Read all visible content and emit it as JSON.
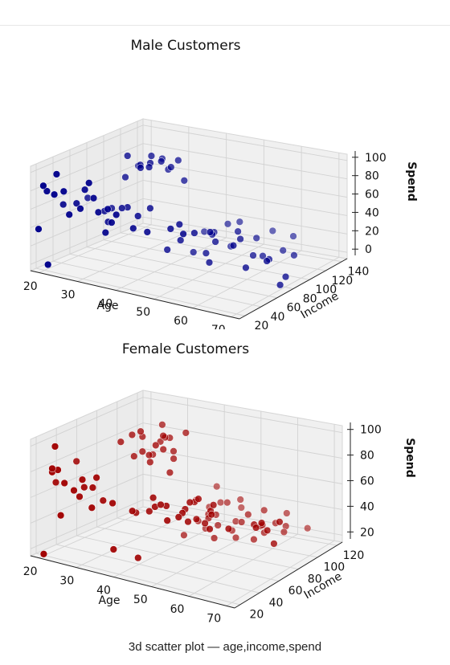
{
  "caption": "3d scatter plot — age,income,spend",
  "chart_data": [
    {
      "type": "scatter",
      "title": "Male  Customers",
      "color": "#00008b",
      "xlabel": "Age",
      "ylabel": "Income",
      "zlabel": "Spend",
      "x_ticks": [
        "20",
        "30",
        "40",
        "50",
        "60",
        "70"
      ],
      "y_ticks": [
        "20",
        "40",
        "60",
        "80",
        "100",
        "120",
        "140"
      ],
      "z_ticks": [
        "0",
        "20",
        "40",
        "60",
        "80",
        "100"
      ],
      "xlim": [
        18,
        72
      ],
      "ylim": [
        10,
        145
      ],
      "zlim": [
        0,
        100
      ],
      "grid": true,
      "points": [
        [
          19,
          15,
          39
        ],
        [
          20,
          16,
          81
        ],
        [
          21,
          17,
          6
        ],
        [
          23,
          18,
          94
        ],
        [
          22,
          20,
          73
        ],
        [
          24,
          22,
          77
        ],
        [
          25,
          24,
          55
        ],
        [
          19,
          25,
          72
        ],
        [
          27,
          28,
          61
        ],
        [
          29,
          29,
          87
        ],
        [
          30,
          30,
          73
        ],
        [
          31,
          31,
          60
        ],
        [
          33,
          33,
          64
        ],
        [
          34,
          33,
          52
        ],
        [
          35,
          34,
          60
        ],
        [
          32,
          35,
          40
        ],
        [
          26,
          38,
          75
        ],
        [
          20,
          40,
          55
        ],
        [
          23,
          42,
          58
        ],
        [
          37,
          45,
          45
        ],
        [
          40,
          48,
          43
        ],
        [
          29,
          52,
          42
        ],
        [
          48,
          54,
          46
        ],
        [
          27,
          57,
          49
        ],
        [
          35,
          60,
          50
        ],
        [
          43,
          62,
          44
        ],
        [
          53,
          63,
          49
        ],
        [
          30,
          64,
          52
        ],
        [
          31,
          66,
          53
        ],
        [
          44,
          68,
          47
        ],
        [
          36,
          70,
          55
        ],
        [
          47,
          72,
          40
        ],
        [
          19,
          74,
          49
        ],
        [
          25,
          75,
          44
        ],
        [
          32,
          77,
          88
        ],
        [
          34,
          78,
          90
        ],
        [
          28,
          80,
          95
        ],
        [
          27,
          82,
          73
        ],
        [
          33,
          84,
          91
        ],
        [
          30,
          86,
          86
        ],
        [
          35,
          88,
          93
        ],
        [
          32,
          90,
          95
        ],
        [
          28,
          93,
          81
        ],
        [
          36,
          95,
          86
        ],
        [
          39,
          97,
          75
        ],
        [
          37,
          99,
          92
        ],
        [
          34,
          101,
          80
        ],
        [
          32,
          103,
          88
        ],
        [
          40,
          72,
          18
        ],
        [
          43,
          74,
          29
        ],
        [
          50,
          76,
          13
        ],
        [
          56,
          77,
          34
        ],
        [
          59,
          78,
          15
        ],
        [
          64,
          80,
          25
        ],
        [
          67,
          82,
          4
        ],
        [
          68,
          84,
          12
        ],
        [
          47,
          86,
          16
        ],
        [
          49,
          88,
          28
        ],
        [
          55,
          90,
          35
        ],
        [
          62,
          92,
          21
        ],
        [
          42,
          94,
          10
        ],
        [
          57,
          96,
          19
        ],
        [
          46,
          98,
          29
        ],
        [
          52,
          101,
          36
        ],
        [
          58,
          103,
          17
        ],
        [
          45,
          105,
          28
        ],
        [
          65,
          108,
          22
        ],
        [
          48,
          111,
          15
        ],
        [
          54,
          114,
          27
        ],
        [
          60,
          118,
          19
        ],
        [
          39,
          121,
          18
        ],
        [
          44,
          126,
          28
        ],
        [
          46,
          131,
          30
        ],
        [
          59,
          135,
          26
        ],
        [
          53,
          138,
          25
        ]
      ]
    },
    {
      "type": "scatter",
      "title": "Female  Customers",
      "color": "#a00000",
      "xlabel": "Age",
      "ylabel": "Income",
      "zlabel": "Spend",
      "x_ticks": [
        "20",
        "30",
        "40",
        "50",
        "60",
        "70"
      ],
      "y_ticks": [
        "20",
        "40",
        "60",
        "80",
        "100",
        "120"
      ],
      "z_ticks": [
        "20",
        "40",
        "60",
        "80",
        "100"
      ],
      "xlim": [
        18,
        72
      ],
      "ylim": [
        10,
        130
      ],
      "zlim": [
        5,
        100
      ],
      "grid": true,
      "points": [
        [
          20,
          16,
          6
        ],
        [
          22,
          17,
          77
        ],
        [
          24,
          18,
          40
        ],
        [
          23,
          19,
          76
        ],
        [
          22,
          20,
          94
        ],
        [
          21,
          21,
          72
        ],
        [
          24,
          22,
          65
        ],
        [
          26,
          24,
          60
        ],
        [
          28,
          25,
          70
        ],
        [
          27,
          26,
          55
        ],
        [
          30,
          27,
          48
        ],
        [
          31,
          28,
          73
        ],
        [
          35,
          29,
          55
        ],
        [
          35,
          30,
          17
        ],
        [
          27,
          31,
          61
        ],
        [
          29,
          32,
          62
        ],
        [
          19,
          33,
          58
        ],
        [
          31,
          35,
          52
        ],
        [
          40,
          36,
          12
        ],
        [
          38,
          38,
          48
        ],
        [
          47,
          39,
          47
        ],
        [
          45,
          40,
          58
        ],
        [
          43,
          42,
          54
        ],
        [
          49,
          43,
          50
        ],
        [
          42,
          44,
          60
        ],
        [
          45,
          46,
          55
        ],
        [
          49,
          47,
          52
        ],
        [
          40,
          48,
          46
        ],
        [
          50,
          49,
          45
        ],
        [
          36,
          50,
          41
        ],
        [
          20,
          51,
          70
        ],
        [
          55,
          52,
          42
        ],
        [
          48,
          54,
          52
        ],
        [
          49,
          55,
          58
        ],
        [
          59,
          56,
          44
        ],
        [
          54,
          58,
          51
        ],
        [
          52,
          59,
          42
        ],
        [
          50,
          60,
          60
        ],
        [
          65,
          61,
          48
        ],
        [
          49,
          62,
          42
        ],
        [
          66,
          63,
          52
        ],
        [
          53,
          64,
          56
        ],
        [
          67,
          65,
          46
        ],
        [
          70,
          66,
          55
        ],
        [
          63,
          67,
          47
        ],
        [
          68,
          68,
          35
        ],
        [
          51,
          69,
          48
        ],
        [
          27,
          70,
          85
        ],
        [
          36,
          71,
          89
        ],
        [
          30,
          72,
          75
        ],
        [
          34,
          73,
          73
        ],
        [
          29,
          74,
          91
        ],
        [
          31,
          75,
          95
        ],
        [
          33,
          76,
          77
        ],
        [
          31,
          77,
          78
        ],
        [
          38,
          78,
          66
        ],
        [
          36,
          79,
          83
        ],
        [
          44,
          80,
          46
        ],
        [
          30,
          81,
          88
        ],
        [
          38,
          82,
          76
        ],
        [
          35,
          83,
          92
        ],
        [
          32,
          84,
          74
        ],
        [
          35,
          85,
          90
        ],
        [
          37,
          86,
          80
        ],
        [
          40,
          87,
          97
        ],
        [
          33,
          88,
          84
        ],
        [
          47,
          89,
          16
        ],
        [
          35,
          90,
          88
        ],
        [
          45,
          91,
          30
        ],
        [
          42,
          92,
          25
        ],
        [
          38,
          93,
          10
        ],
        [
          32,
          94,
          95
        ],
        [
          56,
          95,
          20
        ],
        [
          58,
          96,
          33
        ],
        [
          46,
          97,
          23
        ],
        [
          52,
          98,
          30
        ],
        [
          43,
          99,
          29
        ],
        [
          50,
          100,
          15
        ],
        [
          53,
          101,
          36
        ],
        [
          57,
          102,
          24
        ],
        [
          44,
          103,
          28
        ],
        [
          48,
          104,
          18
        ],
        [
          59,
          106,
          32
        ],
        [
          61,
          107,
          26
        ],
        [
          40,
          108,
          12
        ],
        [
          55,
          110,
          38
        ],
        [
          47,
          112,
          22
        ],
        [
          60,
          113,
          28
        ],
        [
          36,
          114,
          30
        ],
        [
          44,
          115,
          34
        ],
        [
          39,
          116,
          26
        ],
        [
          52,
          118,
          20
        ],
        [
          41,
          120,
          30
        ],
        [
          46,
          121,
          36
        ],
        [
          58,
          122,
          34
        ],
        [
          63,
          124,
          25
        ],
        [
          45,
          126,
          27
        ],
        [
          38,
          128,
          38
        ]
      ]
    }
  ]
}
